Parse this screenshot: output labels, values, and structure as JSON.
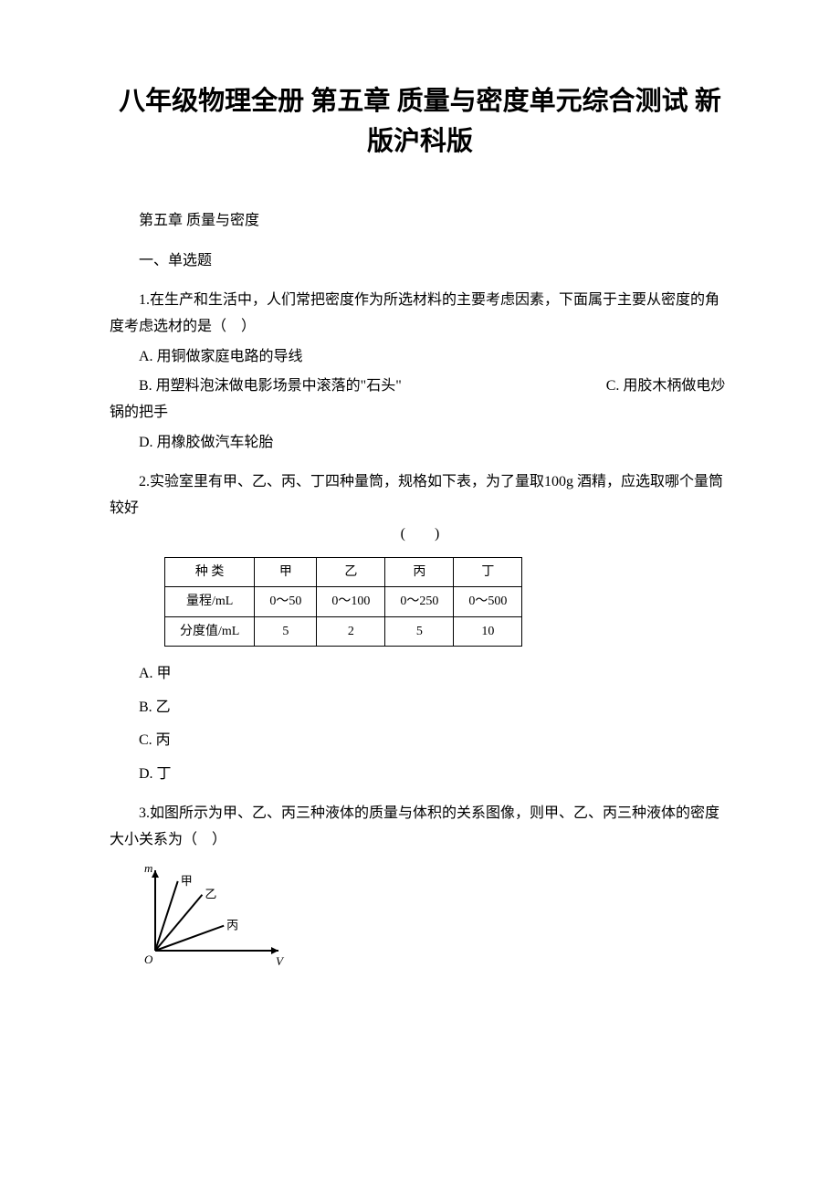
{
  "title": "八年级物理全册 第五章 质量与密度单元综合测试 新版沪科版",
  "chapter": "第五章 质量与密度",
  "sectionHeading": "一、单选题",
  "q1": {
    "text": "1.在生产和生活中，人们常把密度作为所选材料的主要考虑因素，下面属于主要从密度的角度考虑选材的是（　）",
    "optA": "A. 用铜做家庭电路的导线",
    "optB": "B. 用塑料泡沫做电影场景中滚落的\"石头\"　　　　　　　　　　　　　　C. 用胶木柄做电炒锅的把手",
    "optD": "D. 用橡胶做汽车轮胎"
  },
  "q2": {
    "text": "2.实验室里有甲、乙、丙、丁四种量筒，规格如下表，为了量取100g 酒精，应选取哪个量筒较好",
    "tableCaption": "(　　)",
    "headers": [
      "种 类",
      "甲",
      "乙",
      "丙",
      "丁"
    ],
    "row1": [
      "量程/mL",
      "0～50",
      "0～100",
      "0～250",
      "0～500"
    ],
    "row2": [
      "分度值/mL",
      "5",
      "2",
      "5",
      "10"
    ],
    "optA": "A. 甲",
    "optB": "B. 乙",
    "optC": "C. 丙",
    "optD": "D. 丁"
  },
  "q3": {
    "text": "3.如图所示为甲、乙、丙三种液体的质量与体积的关系图像，则甲、乙、丙三种液体的密度大小关系为（　）",
    "graph": {
      "xAxisLabel": "V",
      "yAxisLabel": "m",
      "lines": [
        "甲",
        "乙",
        "丙"
      ],
      "lineColors": [
        "#000000",
        "#000000",
        "#000000"
      ],
      "axisColor": "#000000",
      "background": "#ffffff",
      "angles": [
        72,
        50,
        20
      ],
      "lineWidth": 2,
      "fontSize": 13
    }
  }
}
